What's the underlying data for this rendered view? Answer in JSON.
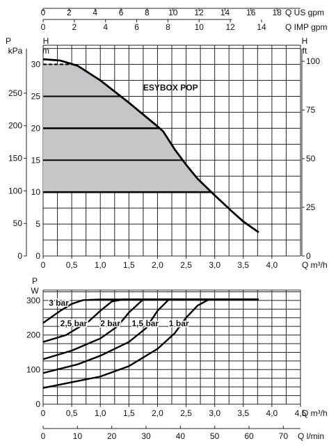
{
  "chart_data": [
    {
      "type": "area",
      "title": "ESYBOX POP",
      "xlabel": "Q m³/h",
      "xlim": [
        0,
        4.5
      ],
      "x_ticks": [
        "0",
        "0,5",
        "1,0",
        "1,5",
        "2,0",
        "2,5",
        "3,0",
        "3,5",
        "4,0"
      ],
      "ylabel": "H m",
      "ylim": [
        0,
        33
      ],
      "y_ticks": [
        "0",
        "5",
        "10",
        "15",
        "20",
        "25",
        "30"
      ],
      "y_left_outer_label": "P kPa",
      "y_left_outer_ticks": [
        "0",
        "50",
        "100",
        "150",
        "200",
        "250"
      ],
      "y_right_label": "H ft",
      "y_right_ticks": [
        "0",
        "25",
        "50",
        "75",
        "100"
      ],
      "top_axis_1_label": "Q US gpm",
      "top_axis_1_ticks": [
        "0",
        "2",
        "4",
        "6",
        "8",
        "10",
        "12",
        "14",
        "16",
        "18"
      ],
      "top_axis_2_label": "Q IMP gpm",
      "top_axis_2_ticks": [
        "0",
        "2",
        "4",
        "6",
        "8",
        "10",
        "12",
        "14"
      ],
      "grid": true,
      "series": [
        {
          "values": [
            [
              0,
              30.8
            ],
            [
              0.3,
              30.6
            ],
            [
              0.6,
              29.8
            ],
            [
              1.0,
              27.5
            ],
            [
              1.5,
              24
            ],
            [
              2.0,
              20.3
            ],
            [
              2.1,
              19.5
            ],
            [
              2.3,
              16.7
            ],
            [
              2.5,
              14.3
            ],
            [
              2.7,
              12.1
            ],
            [
              3.0,
              9.5
            ],
            [
              3.3,
              7
            ],
            [
              3.5,
              5.4
            ],
            [
              3.77,
              3.7
            ]
          ],
          "shaded_region": {
            "ymin": 10,
            "ymax": 30,
            "color": "#c6c6c8"
          },
          "setpoint_lines": [
            10,
            15,
            20,
            25,
            30
          ]
        }
      ]
    },
    {
      "type": "line",
      "xlabel": "Q m³/h",
      "xlim": [
        0,
        4.5
      ],
      "x_ticks": [
        "0",
        "0,5",
        "1,0",
        "1,5",
        "2,0",
        "2,5",
        "3,0",
        "3,5",
        "4,0",
        "4,5"
      ],
      "ylabel": "P W",
      "ylim": [
        0,
        330
      ],
      "y_ticks": [
        "0",
        "100",
        "200",
        "300"
      ],
      "bottom_axis_label": "Q l/min",
      "bottom_axis_ticks": [
        "0",
        "10",
        "20",
        "30",
        "40",
        "50",
        "60",
        "70"
      ],
      "grid": true,
      "series": [
        {
          "name": "3 bar",
          "values": [
            [
              0,
              235
            ],
            [
              0.3,
              270
            ],
            [
              0.5,
              290
            ],
            [
              0.7,
              301
            ],
            [
              1.0,
              303
            ],
            [
              3.77,
              303
            ]
          ]
        },
        {
          "name": "2,5 bar",
          "values": [
            [
              0,
              180
            ],
            [
              0.4,
              200
            ],
            [
              0.8,
              240
            ],
            [
              1.0,
              270
            ],
            [
              1.2,
              297
            ],
            [
              1.4,
              303
            ],
            [
              3.77,
              303
            ]
          ]
        },
        {
          "name": "2 bar",
          "values": [
            [
              0,
              130
            ],
            [
              0.5,
              155
            ],
            [
              1.0,
              190
            ],
            [
              1.3,
              225
            ],
            [
              1.5,
              265
            ],
            [
              1.75,
              303
            ],
            [
              3.77,
              303
            ]
          ]
        },
        {
          "name": "1,5 bar",
          "values": [
            [
              0,
              90
            ],
            [
              0.6,
              115
            ],
            [
              1.0,
              140
            ],
            [
              1.5,
              180
            ],
            [
              1.8,
              220
            ],
            [
              2.0,
              270
            ],
            [
              2.2,
              303
            ],
            [
              3.77,
              303
            ]
          ]
        },
        {
          "name": "1 bar",
          "values": [
            [
              0,
              47
            ],
            [
              1.0,
              80
            ],
            [
              1.5,
              110
            ],
            [
              2.0,
              160
            ],
            [
              2.3,
              205
            ],
            [
              2.5,
              250
            ],
            [
              2.7,
              285
            ],
            [
              2.9,
              303
            ],
            [
              3.77,
              303
            ]
          ]
        }
      ]
    }
  ]
}
